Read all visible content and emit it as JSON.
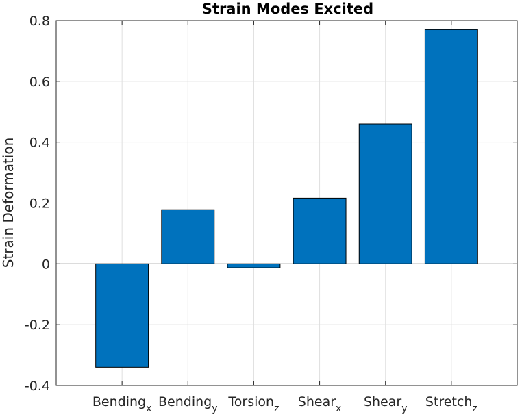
{
  "chart_data": {
    "type": "bar",
    "title": "Strain Modes Excited",
    "xlabel": "",
    "ylabel": "Strain Deformation",
    "categories": [
      {
        "base": "Bending",
        "sub": "x"
      },
      {
        "base": "Bending",
        "sub": "y"
      },
      {
        "base": "Torsion",
        "sub": "z"
      },
      {
        "base": "Shear",
        "sub": "x"
      },
      {
        "base": "Shear",
        "sub": "y"
      },
      {
        "base": "Stretch",
        "sub": "z"
      }
    ],
    "values": [
      -0.34,
      0.178,
      -0.013,
      0.216,
      0.46,
      0.77
    ],
    "ylim": [
      -0.4,
      0.8
    ],
    "yticks": [
      -0.4,
      -0.2,
      0,
      0.2,
      0.4,
      0.6,
      0.8
    ],
    "ytick_labels": [
      "-0.4",
      "-0.2",
      "0",
      "0.2",
      "0.4",
      "0.6",
      "0.8"
    ],
    "grid": true,
    "bar_color": "#0072BD",
    "bar_edge_color": "#000000"
  }
}
